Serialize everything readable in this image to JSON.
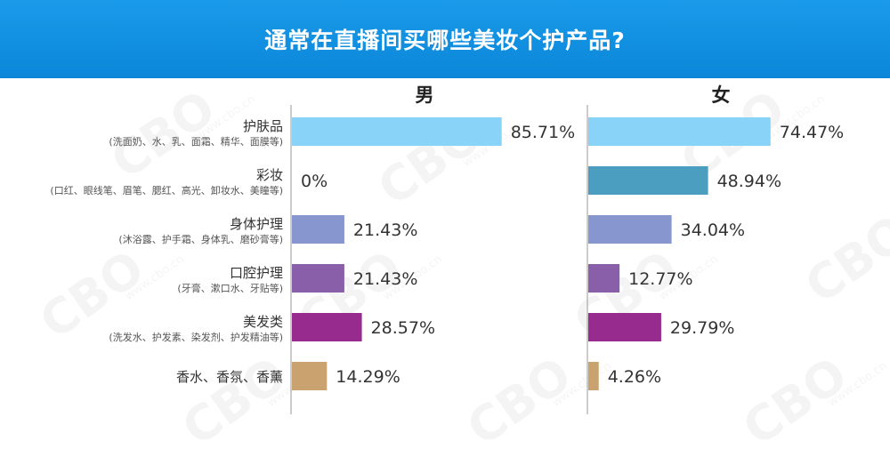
{
  "header": {
    "title": "通常在直播间买哪些美妆个护产品?"
  },
  "watermark": {
    "text": "CBO",
    "url": "www.cbo.cn"
  },
  "chart_data": {
    "type": "bar",
    "orientation": "horizontal",
    "title": "通常在直播间买哪些美妆个护产品?",
    "categories": [
      "护肤品",
      "彩妆",
      "身体护理",
      "口腔护理",
      "美发类",
      "香水、香氛、香薰"
    ],
    "category_notes": [
      "(洗面奶、水、乳、面霜、精华、面膜等)",
      "(口红、眼线笔、眉笔、腮红、高光、卸妆水、美瞳等)",
      "(沐浴露、护手霜、身体乳、磨砂膏等)",
      "(牙膏、漱口水、牙贴等)",
      "(洗发水、护发素、染发剂、护发精油等)",
      ""
    ],
    "bar_colors": [
      "#88d3f7",
      "#4b9ec0",
      "#8896cf",
      "#8a5fa9",
      "#982c8e",
      "#c9a270"
    ],
    "xlim": [
      0,
      100
    ],
    "value_suffix": "%",
    "panels": [
      {
        "name": "男",
        "values": [
          85.71,
          0,
          21.43,
          21.43,
          28.57,
          14.29
        ],
        "labels": [
          "85.71%",
          "0%",
          "21.43%",
          "21.43%",
          "28.57%",
          "14.29%"
        ]
      },
      {
        "name": "女",
        "values": [
          74.47,
          48.94,
          34.04,
          12.77,
          29.79,
          4.26
        ],
        "labels": [
          "74.47%",
          "48.94%",
          "34.04%",
          "12.77%",
          "29.79%",
          "4.26%"
        ]
      }
    ]
  }
}
